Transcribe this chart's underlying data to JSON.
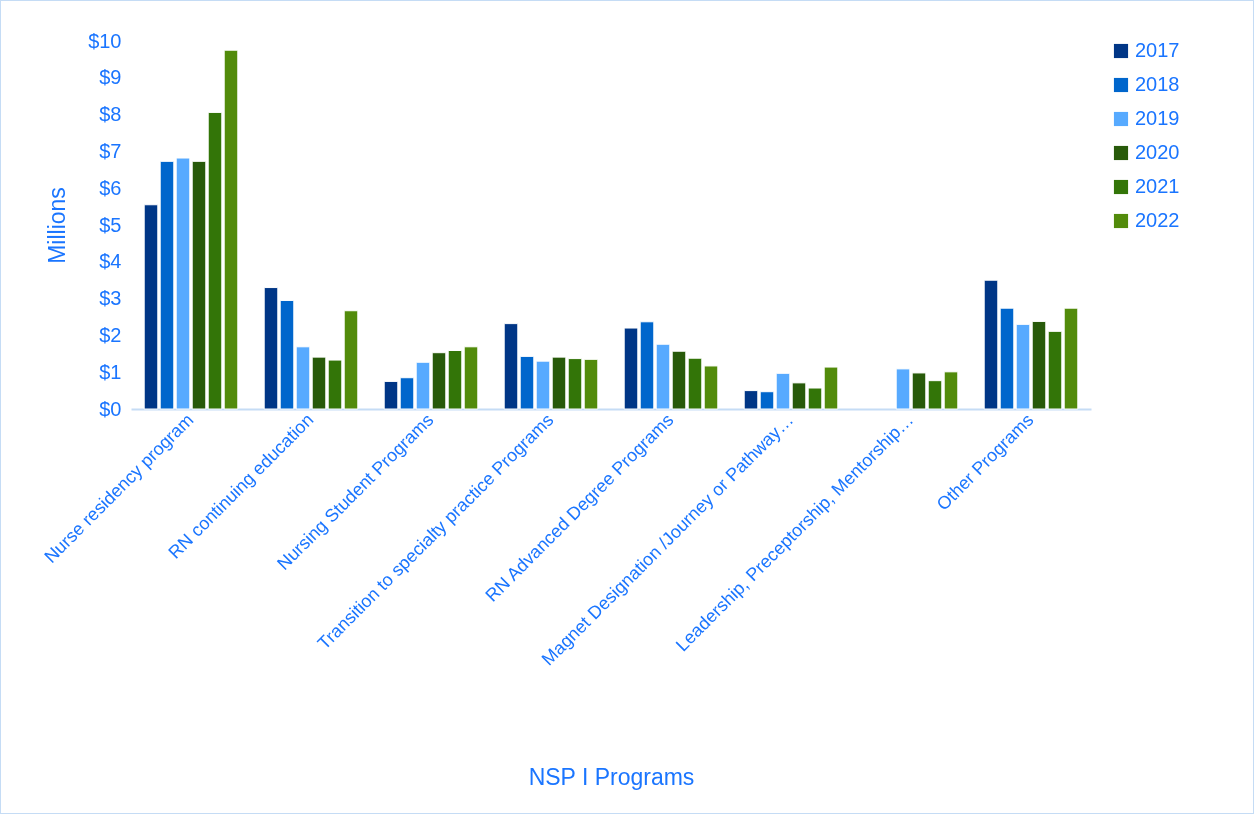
{
  "chart_data": {
    "type": "bar",
    "xlabel": "NSP I Programs",
    "ylabel": "Millions",
    "categories": [
      "Nurse residency program",
      "RN continuing education",
      "Nursing Student Programs",
      "Transition to specialty practice Programs",
      "RN Advanced  Degree Programs",
      "Magnet Designation /Journey or Pathway…",
      "Leadership, Preceptorship, Mentorship…",
      "Other Programs"
    ],
    "series": [
      {
        "name": "2017",
        "color": "#003686",
        "values": [
          5.55,
          3.3,
          0.75,
          2.32,
          2.2,
          0.5,
          null,
          3.5
        ]
      },
      {
        "name": "2018",
        "color": "#0066cc",
        "values": [
          6.73,
          2.95,
          0.85,
          1.43,
          2.37,
          0.47,
          null,
          2.74
        ]
      },
      {
        "name": "2019",
        "color": "#57aaff",
        "values": [
          6.82,
          1.69,
          1.27,
          1.3,
          1.76,
          0.97,
          1.09,
          2.3
        ]
      },
      {
        "name": "2020",
        "color": "#285a0a",
        "values": [
          6.73,
          1.41,
          1.53,
          1.41,
          1.57,
          0.71,
          0.98,
          2.38
        ]
      },
      {
        "name": "2021",
        "color": "#337508",
        "values": [
          8.06,
          1.33,
          1.59,
          1.37,
          1.38,
          0.57,
          0.77,
          2.11
        ]
      },
      {
        "name": "2022",
        "color": "#528b0b",
        "values": [
          9.75,
          2.67,
          1.69,
          1.35,
          1.17,
          1.14,
          1.01,
          2.74
        ]
      }
    ],
    "ylim": [
      0,
      10
    ],
    "yticks": [
      {
        "value": 0,
        "label": "$0"
      },
      {
        "value": 1,
        "label": "$1"
      },
      {
        "value": 2,
        "label": "$2"
      },
      {
        "value": 3,
        "label": "$3"
      },
      {
        "value": 4,
        "label": "$4"
      },
      {
        "value": 5,
        "label": "$5"
      },
      {
        "value": 6,
        "label": "$6"
      },
      {
        "value": 7,
        "label": "$7"
      },
      {
        "value": 8,
        "label": "$8"
      },
      {
        "value": 9,
        "label": "$9"
      },
      {
        "value": 10,
        "label": "$10"
      }
    ],
    "grid": false,
    "legend": "right"
  }
}
